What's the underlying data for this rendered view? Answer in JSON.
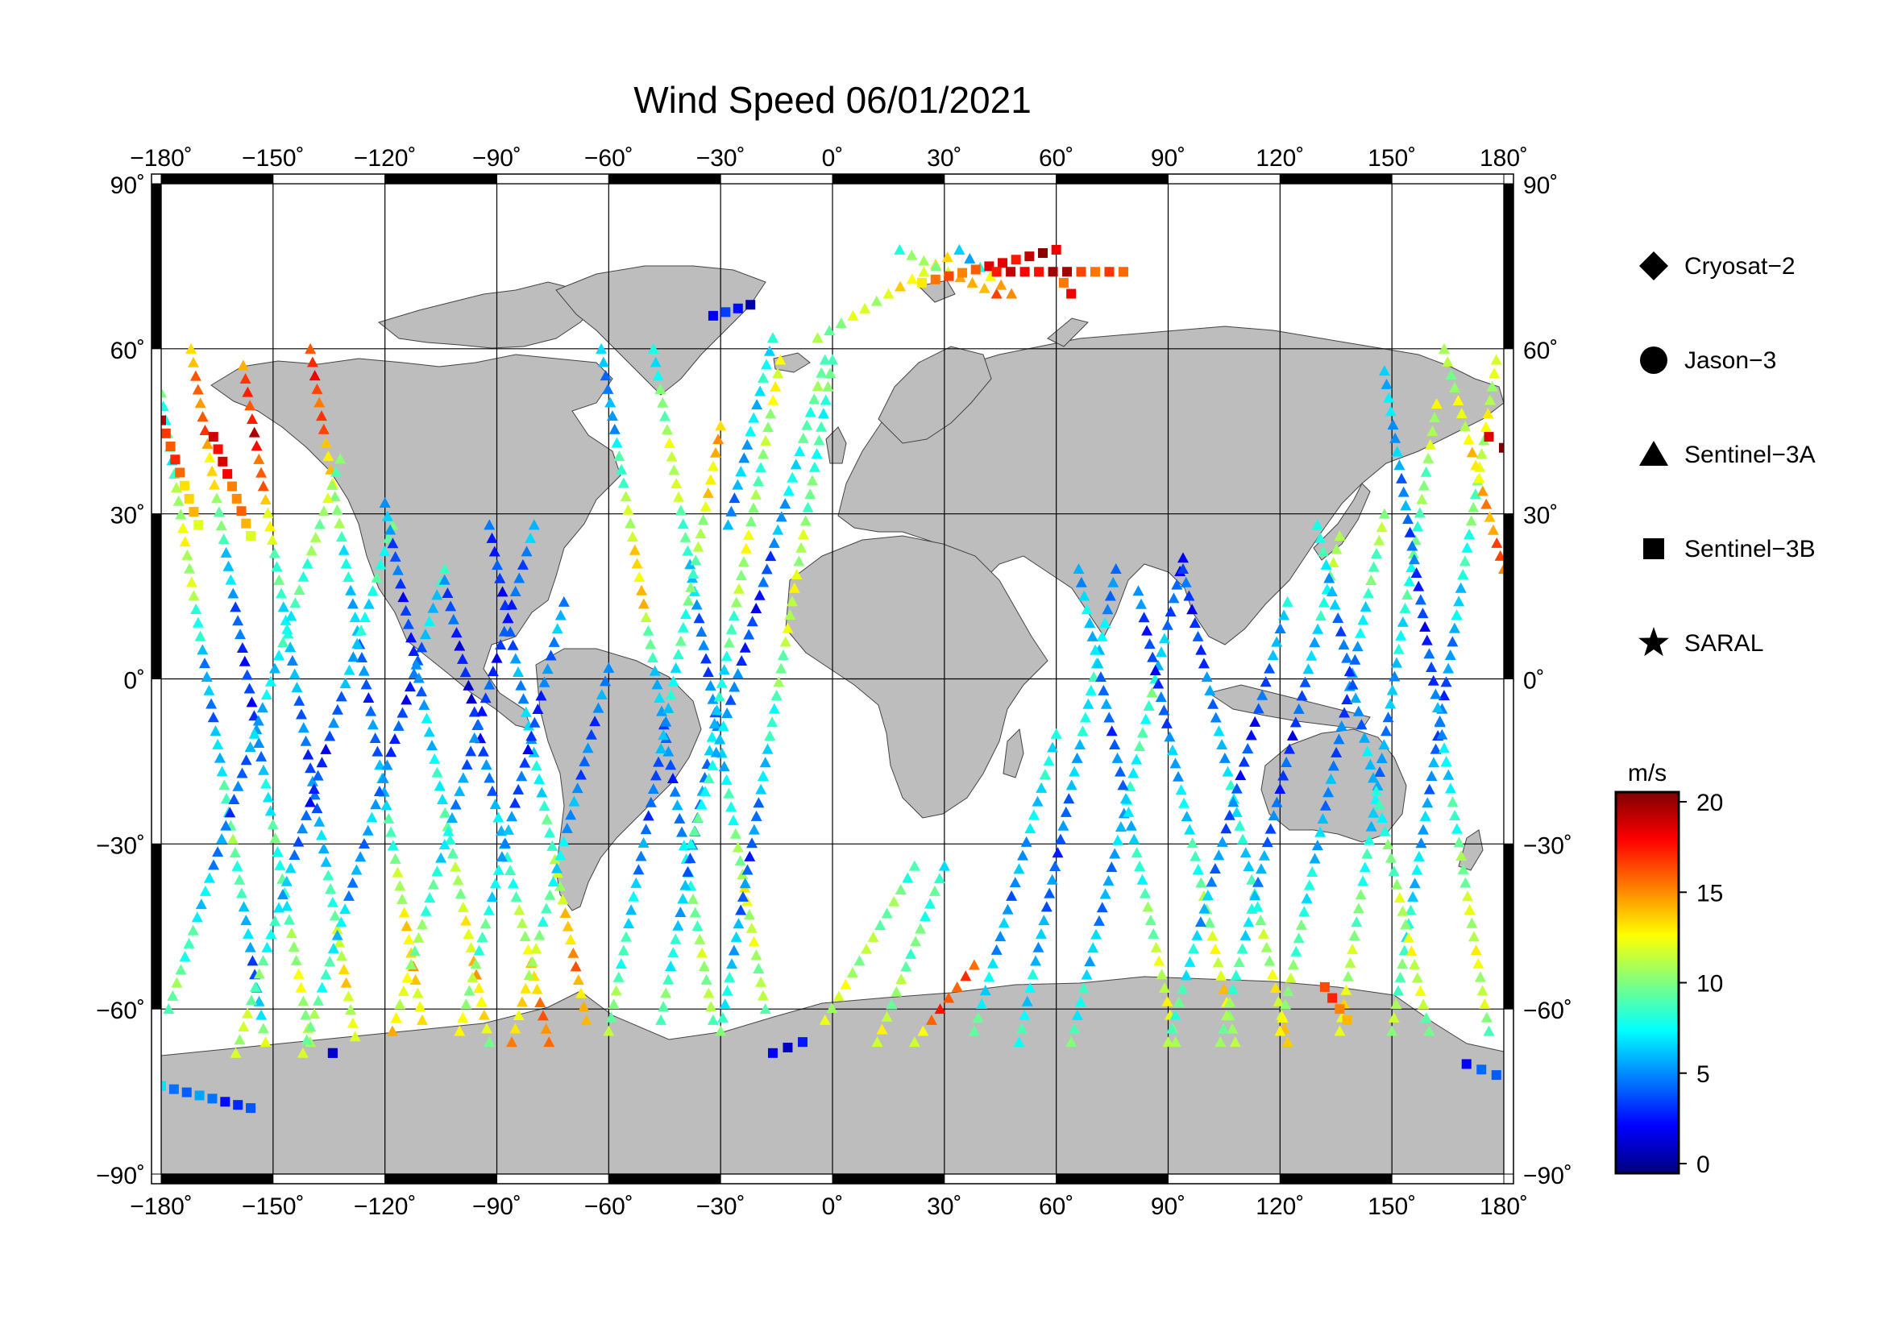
{
  "title": "Wind Speed 06/01/2021",
  "map": {
    "projection": "equirectangular",
    "lon_range": [
      -180,
      180
    ],
    "lat_range": [
      -90,
      90
    ],
    "lon_ticks": [
      -180,
      -150,
      -120,
      -90,
      -60,
      -30,
      0,
      30,
      60,
      90,
      120,
      150,
      180
    ],
    "lat_ticks": [
      90,
      60,
      30,
      0,
      -30,
      -60,
      -90
    ],
    "lon_tick_labels": [
      "−180˚",
      "−150˚",
      "−120˚",
      "−90˚",
      "−60˚",
      "−30˚",
      "0˚",
      "30˚",
      "60˚",
      "90˚",
      "120˚",
      "150˚",
      "180˚"
    ],
    "lat_tick_labels": [
      "90˚",
      "60˚",
      "30˚",
      "0˚",
      "−30˚",
      "−60˚",
      "−90˚"
    ],
    "land_color": "#bdbdbd",
    "ocean_color": "#ffffff",
    "grid": true
  },
  "legend": {
    "placement": "right",
    "entries": [
      {
        "label": "Cryosat−2",
        "marker": "diamond"
      },
      {
        "label": "Jason−3",
        "marker": "circle"
      },
      {
        "label": "Sentinel−3A",
        "marker": "triangle"
      },
      {
        "label": "Sentinel−3B",
        "marker": "square"
      },
      {
        "label": "SARAL",
        "marker": "star"
      }
    ]
  },
  "colorbar": {
    "unit": "m/s",
    "min": 0,
    "max": 20,
    "ticks": [
      0,
      5,
      10,
      15,
      20
    ],
    "tick_labels": [
      "0",
      "5",
      "10",
      "15",
      "20"
    ],
    "colormap": "jet",
    "colors": [
      "#00007f",
      "#0000ff",
      "#007fff",
      "#00ffff",
      "#7fff7f",
      "#ffff00",
      "#ff7f00",
      "#ff0000",
      "#7f0000"
    ]
  },
  "chart_data": {
    "type": "scatter",
    "title": "Wind Speed 06/01/2021",
    "value_unit": "m/s",
    "tracks": [
      {
        "satellite": "Sentinel−3A",
        "marker": "triangle",
        "start": [
          -180,
          52
        ],
        "end": [
          -152,
          -66
        ],
        "values": [
          9,
          8,
          12,
          11,
          6,
          5,
          8,
          10,
          7,
          4,
          11
        ]
      },
      {
        "satellite": "Sentinel−3A",
        "marker": "triangle",
        "start": [
          -172,
          60
        ],
        "end": [
          -140,
          -66
        ],
        "values": [
          14,
          16,
          12,
          7,
          4,
          3,
          6,
          9,
          8,
          12,
          10
        ]
      },
      {
        "satellite": "Sentinel−3A",
        "marker": "triangle",
        "start": [
          -158,
          57
        ],
        "end": [
          -128,
          -65
        ],
        "values": [
          15,
          18,
          14,
          9,
          7,
          5,
          4,
          6,
          9,
          13,
          11
        ]
      },
      {
        "satellite": "Sentinel−3A",
        "marker": "triangle",
        "start": [
          -140,
          60
        ],
        "end": [
          -110,
          -62
        ],
        "values": [
          17,
          16,
          12,
          8,
          6,
          4,
          5,
          8,
          11,
          14,
          12
        ]
      },
      {
        "satellite": "Sentinel−3A",
        "marker": "triangle",
        "start": [
          -178,
          -60
        ],
        "end": [
          -132,
          40
        ],
        "values": [
          10,
          9,
          7,
          5,
          4,
          6,
          7,
          8,
          9,
          11,
          10
        ]
      },
      {
        "satellite": "Sentinel−3A",
        "marker": "triangle",
        "start": [
          -160,
          -68
        ],
        "end": [
          -118,
          28
        ],
        "values": [
          12,
          10,
          8,
          6,
          4,
          3,
          5,
          7,
          8,
          9
        ]
      },
      {
        "satellite": "Sentinel−3A",
        "marker": "triangle",
        "start": [
          -142,
          -68
        ],
        "end": [
          -104,
          20
        ],
        "values": [
          11,
          9,
          7,
          5,
          6,
          4,
          3,
          6,
          8
        ]
      },
      {
        "satellite": "Sentinel−3A",
        "marker": "triangle",
        "start": [
          -120,
          32
        ],
        "end": [
          -92,
          -66
        ],
        "values": [
          6,
          4,
          3,
          5,
          7,
          8,
          10,
          12,
          14,
          11
        ]
      },
      {
        "satellite": "Sentinel−3A",
        "marker": "triangle",
        "start": [
          -104,
          18
        ],
        "end": [
          -76,
          -66
        ],
        "values": [
          5,
          3,
          2,
          4,
          6,
          8,
          11,
          14,
          16
        ]
      },
      {
        "satellite": "Sentinel−3A",
        "marker": "triangle",
        "start": [
          -92,
          28
        ],
        "end": [
          -66,
          -62
        ],
        "values": [
          4,
          3,
          5,
          6,
          7,
          9,
          12,
          15,
          13
        ]
      },
      {
        "satellite": "Sentinel−3A",
        "marker": "triangle",
        "start": [
          -118,
          -64
        ],
        "end": [
          -80,
          28
        ],
        "values": [
          13,
          11,
          9,
          7,
          5,
          4,
          3,
          4,
          6
        ]
      },
      {
        "satellite": "Sentinel−3A",
        "marker": "triangle",
        "start": [
          -100,
          -64
        ],
        "end": [
          -72,
          14
        ],
        "values": [
          12,
          10,
          8,
          6,
          4,
          3,
          5,
          6
        ]
      },
      {
        "satellite": "Sentinel−3A",
        "marker": "triangle",
        "start": [
          -86,
          -66
        ],
        "end": [
          -60,
          2
        ],
        "values": [
          14,
          12,
          9,
          7,
          5,
          4,
          6
        ]
      },
      {
        "satellite": "Sentinel−3A",
        "marker": "triangle",
        "start": [
          -62,
          60
        ],
        "end": [
          -32,
          -62
        ],
        "values": [
          6,
          5,
          9,
          12,
          14,
          8,
          5,
          4,
          6,
          9,
          11,
          10
        ]
      },
      {
        "satellite": "Sentinel−3A",
        "marker": "triangle",
        "start": [
          -48,
          60
        ],
        "end": [
          -18,
          -60
        ],
        "values": [
          7,
          10,
          12,
          9,
          6,
          4,
          5,
          7,
          9,
          12,
          11,
          10
        ]
      },
      {
        "satellite": "Sentinel−3A",
        "marker": "triangle",
        "start": [
          -60,
          -64
        ],
        "end": [
          -30,
          46
        ],
        "values": [
          11,
          9,
          7,
          5,
          4,
          6,
          8,
          9,
          10,
          13,
          14
        ]
      },
      {
        "satellite": "Sentinel−3A",
        "marker": "triangle",
        "start": [
          -46,
          -62
        ],
        "end": [
          -14,
          58
        ],
        "values": [
          10,
          8,
          6,
          4,
          5,
          7,
          8,
          10,
          12,
          9,
          11,
          13
        ]
      },
      {
        "satellite": "Sentinel−3A",
        "marker": "triangle",
        "start": [
          -30,
          -64
        ],
        "end": [
          0,
          58
        ],
        "values": [
          9,
          7,
          5,
          4,
          6,
          8,
          10,
          12,
          11,
          9,
          8,
          10
        ]
      },
      {
        "satellite": "Sentinel−3A",
        "marker": "triangle",
        "start": [
          -2,
          58
        ],
        "end": [
          -38,
          -30
        ],
        "values": [
          10,
          9,
          7,
          5,
          3,
          4,
          6,
          8,
          9
        ]
      },
      {
        "satellite": "Sentinel−3A",
        "marker": "triangle",
        "start": [
          -16,
          62
        ],
        "end": [
          -28,
          28
        ],
        "values": [
          8,
          7,
          6,
          5
        ]
      },
      {
        "satellite": "Sentinel−3A",
        "marker": "triangle",
        "start": [
          -4,
          62
        ],
        "end": [
          34,
          78
        ],
        "values": [
          10,
          11,
          12,
          13,
          12
        ]
      },
      {
        "satellite": "Sentinel−3A",
        "marker": "triangle",
        "start": [
          18,
          78
        ],
        "end": [
          44,
          70
        ],
        "values": [
          9,
          10,
          12,
          14,
          16
        ]
      },
      {
        "satellite": "Sentinel−3A",
        "marker": "triangle",
        "start": [
          34,
          78
        ],
        "end": [
          48,
          70
        ],
        "values": [
          6,
          7,
          9,
          14,
          16
        ]
      },
      {
        "satellite": "Sentinel−3A",
        "marker": "triangle",
        "start": [
          30,
          -34
        ],
        "end": [
          12,
          -66
        ],
        "values": [
          8,
          9,
          10,
          12
        ]
      },
      {
        "satellite": "Sentinel−3A",
        "marker": "triangle",
        "start": [
          38,
          -52
        ],
        "end": [
          22,
          -66
        ],
        "values": [
          15,
          17,
          12
        ]
      },
      {
        "satellite": "Sentinel−3A",
        "marker": "triangle",
        "start": [
          22,
          -34
        ],
        "end": [
          -2,
          -62
        ],
        "values": [
          9,
          10,
          11,
          12
        ]
      },
      {
        "satellite": "Sentinel−3A",
        "marker": "triangle",
        "start": [
          64,
          -66
        ],
        "end": [
          94,
          22
        ],
        "values": [
          9,
          7,
          5,
          6,
          8,
          9,
          5,
          3
        ]
      },
      {
        "satellite": "Sentinel−3A",
        "marker": "triangle",
        "start": [
          50,
          -66
        ],
        "end": [
          76,
          20
        ],
        "values": [
          8,
          7,
          5,
          4,
          6,
          8,
          7,
          4
        ]
      },
      {
        "satellite": "Sentinel−3A",
        "marker": "triangle",
        "start": [
          38,
          -64
        ],
        "end": [
          60,
          -10
        ],
        "values": [
          9,
          6,
          5,
          7,
          8
        ]
      },
      {
        "satellite": "Sentinel−3A",
        "marker": "triangle",
        "start": [
          66,
          20
        ],
        "end": [
          92,
          -66
        ],
        "values": [
          6,
          7,
          5,
          4,
          6,
          8,
          10,
          12,
          11
        ]
      },
      {
        "satellite": "Sentinel−3A",
        "marker": "triangle",
        "start": [
          82,
          16
        ],
        "end": [
          108,
          -66
        ],
        "values": [
          5,
          3,
          4,
          6,
          7,
          9,
          11,
          13,
          10
        ]
      },
      {
        "satellite": "Sentinel−3A",
        "marker": "triangle",
        "start": [
          94,
          20
        ],
        "end": [
          122,
          -66
        ],
        "values": [
          4,
          3,
          5,
          6,
          8,
          7,
          10,
          12,
          13
        ]
      },
      {
        "satellite": "Sentinel−3A",
        "marker": "triangle",
        "start": [
          90,
          -66
        ],
        "end": [
          122,
          14
        ],
        "values": [
          10,
          8,
          6,
          5,
          4,
          3,
          5,
          7
        ]
      },
      {
        "satellite": "Sentinel−3A",
        "marker": "triangle",
        "start": [
          104,
          -66
        ],
        "end": [
          136,
          26
        ],
        "values": [
          11,
          9,
          7,
          5,
          4,
          3,
          6,
          8,
          12
        ]
      },
      {
        "satellite": "Sentinel−3A",
        "marker": "triangle",
        "start": [
          120,
          -64
        ],
        "end": [
          148,
          30
        ],
        "values": [
          12,
          10,
          8,
          6,
          5,
          4,
          6,
          9,
          11
        ]
      },
      {
        "satellite": "Sentinel−3A",
        "marker": "triangle",
        "start": [
          136,
          -64
        ],
        "end": [
          162,
          50
        ],
        "values": [
          13,
          11,
          9,
          7,
          5,
          6,
          8,
          9,
          10,
          12
        ]
      },
      {
        "satellite": "Sentinel−3A",
        "marker": "triangle",
        "start": [
          150,
          -64
        ],
        "end": [
          178,
          58
        ],
        "values": [
          11,
          9,
          7,
          6,
          5,
          4,
          6,
          8,
          10,
          12,
          11
        ]
      },
      {
        "satellite": "Sentinel−3A",
        "marker": "triangle",
        "start": [
          130,
          28
        ],
        "end": [
          160,
          -64
        ],
        "values": [
          9,
          6,
          4,
          5,
          7,
          9,
          11,
          12,
          10
        ]
      },
      {
        "satellite": "Sentinel−3A",
        "marker": "triangle",
        "start": [
          148,
          56
        ],
        "end": [
          176,
          -64
        ],
        "values": [
          7,
          6,
          5,
          4,
          3,
          5,
          7,
          9,
          11,
          12,
          10
        ]
      },
      {
        "satellite": "Sentinel−3A",
        "marker": "triangle",
        "start": [
          164,
          60
        ],
        "end": [
          180,
          20
        ],
        "values": [
          10,
          12,
          14,
          16
        ]
      },
      {
        "satellite": "Sentinel−3B",
        "marker": "square",
        "start": [
          -180,
          47
        ],
        "end": [
          -170,
          28
        ],
        "values": [
          18,
          15,
          12
        ]
      },
      {
        "satellite": "Sentinel−3B",
        "marker": "square",
        "start": [
          -166,
          44
        ],
        "end": [
          -156,
          26
        ],
        "values": [
          19,
          16,
          13
        ]
      },
      {
        "satellite": "Sentinel−3B",
        "marker": "square",
        "start": [
          -180,
          -74
        ],
        "end": [
          -156,
          -78
        ],
        "values": [
          6,
          5,
          4,
          3
        ]
      },
      {
        "satellite": "Sentinel−3B",
        "marker": "square",
        "start": [
          -134,
          -68
        ],
        "end": [
          -134,
          -68
        ],
        "values": [
          2
        ]
      },
      {
        "satellite": "Sentinel−3B",
        "marker": "square",
        "start": [
          -16,
          -68
        ],
        "end": [
          -8,
          -66
        ],
        "values": [
          2,
          3
        ]
      },
      {
        "satellite": "Sentinel−3B",
        "marker": "square",
        "start": [
          24,
          72
        ],
        "end": [
          60,
          78
        ],
        "values": [
          14,
          15,
          16,
          17,
          18,
          19,
          18
        ]
      },
      {
        "satellite": "Sentinel−3B",
        "marker": "square",
        "start": [
          44,
          74
        ],
        "end": [
          78,
          74
        ],
        "values": [
          17,
          18,
          19,
          16,
          15
        ]
      },
      {
        "satellite": "Sentinel−3B",
        "marker": "square",
        "start": [
          62,
          72
        ],
        "end": [
          64,
          70
        ],
        "values": [
          16,
          17
        ]
      },
      {
        "satellite": "Sentinel−3B",
        "marker": "square",
        "start": [
          176,
          44
        ],
        "end": [
          180,
          42
        ],
        "values": [
          18,
          19
        ]
      },
      {
        "satellite": "Sentinel−3B",
        "marker": "square",
        "start": [
          170,
          -70
        ],
        "end": [
          178,
          -72
        ],
        "values": [
          2,
          5
        ]
      },
      {
        "satellite": "Sentinel−3B",
        "marker": "square",
        "start": [
          -32,
          66
        ],
        "end": [
          -22,
          68
        ],
        "values": [
          3,
          2
        ]
      },
      {
        "satellite": "Sentinel−3B",
        "marker": "square",
        "start": [
          132,
          -56
        ],
        "end": [
          138,
          -62
        ],
        "values": [
          16,
          15
        ]
      }
    ]
  }
}
